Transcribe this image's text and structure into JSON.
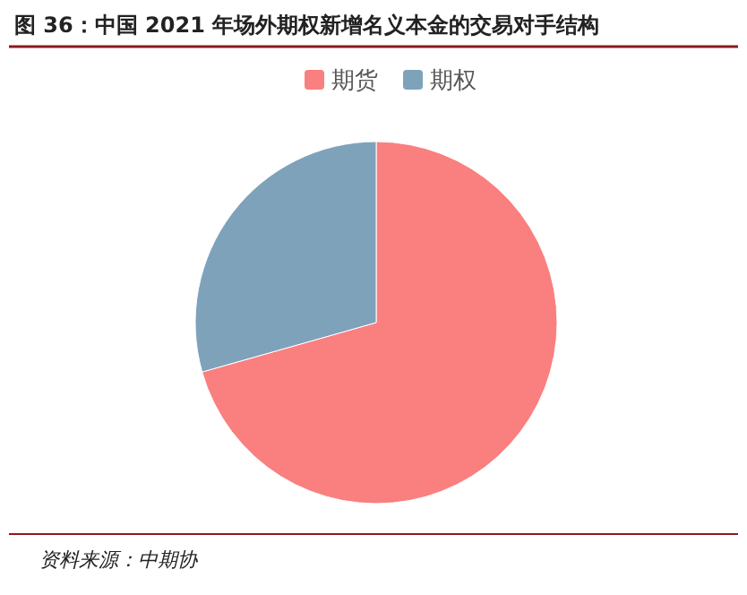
{
  "chart_data": {
    "type": "pie",
    "title": "图 36：中国 2021 年场外期权新增名义本金的交易对手结构",
    "categories": [
      "期货",
      "期权"
    ],
    "values": [
      70.6,
      29.4
    ],
    "colors": [
      "#fa7f7f",
      "#7fa2bb"
    ],
    "legend": "top",
    "annotations": [
      "资料来源：中期协"
    ]
  }
}
